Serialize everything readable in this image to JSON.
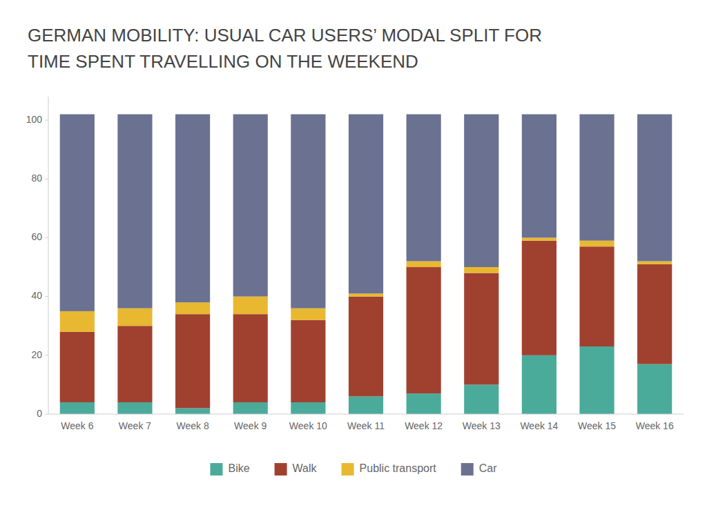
{
  "chart_data": {
    "type": "bar",
    "stacked": true,
    "title": "GERMAN MOBILITY: USUAL CAR USERS’ MODAL SPLIT FOR",
    "subtitle": "TIME SPENT TRAVELLING ON THE WEEKEND",
    "categories": [
      "Week 6",
      "Week 7",
      "Week 8",
      "Week 9",
      "Week 10",
      "Week 11",
      "Week 12",
      "Week 13",
      "Week 14",
      "Week 15",
      "Week 16"
    ],
    "series": [
      {
        "name": "Bike",
        "color": "#4aab9b",
        "values": [
          4,
          4,
          2,
          4,
          4,
          6,
          7,
          10,
          20,
          23,
          17
        ]
      },
      {
        "name": "Walk",
        "color": "#a0412f",
        "values": [
          24,
          26,
          32,
          30,
          28,
          34,
          43,
          38,
          39,
          34,
          34
        ]
      },
      {
        "name": "Public transport",
        "color": "#e8b830",
        "values": [
          7,
          6,
          4,
          6,
          4,
          1,
          2,
          2,
          1,
          2,
          1
        ]
      },
      {
        "name": "Car",
        "color": "#6b7191",
        "values": [
          67,
          66,
          64,
          62,
          66,
          61,
          50,
          52,
          42,
          43,
          50
        ]
      }
    ],
    "ylim": [
      0,
      108
    ],
    "yticks": [
      0,
      20,
      40,
      60,
      80,
      100
    ],
    "grid": false,
    "legend": "bottom"
  }
}
